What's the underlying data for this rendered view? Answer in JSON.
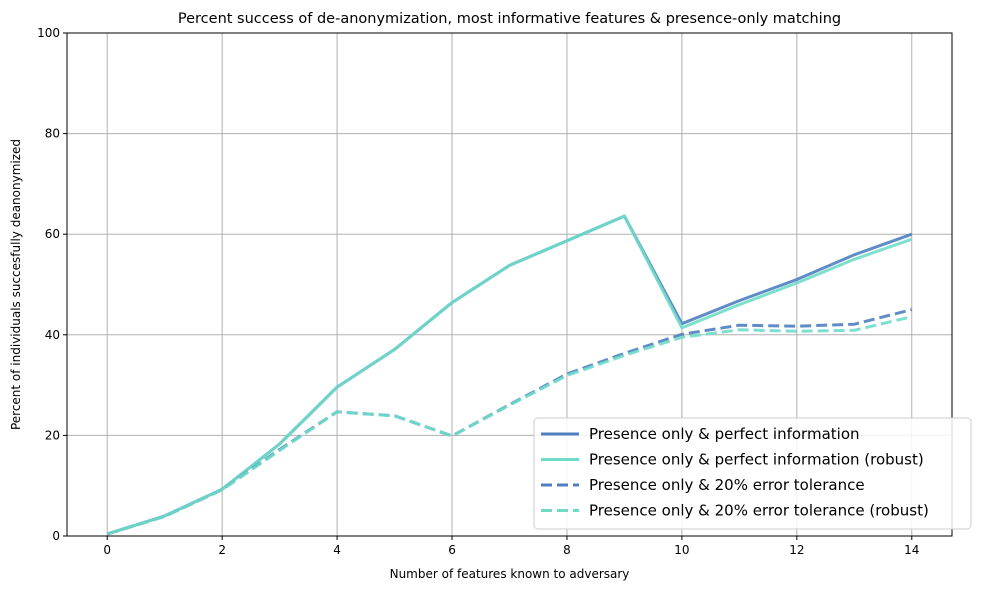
{
  "chart_data": {
    "type": "line",
    "title": "Percent success of de-anonymization, most informative features & presence-only matching",
    "xlabel": "Number of features known to adversary",
    "ylabel": "Percent of individuals succesfully deanonymized",
    "xlim": [
      -0.7,
      14.7
    ],
    "ylim": [
      0,
      100
    ],
    "xticks": [
      0,
      2,
      4,
      6,
      8,
      10,
      12,
      14
    ],
    "yticks": [
      0,
      20,
      40,
      60,
      80,
      100
    ],
    "grid": true,
    "legend_position": "bottom-right",
    "x": [
      0,
      1,
      2,
      3,
      4,
      5,
      6,
      7,
      8,
      9,
      10,
      11,
      12,
      13,
      14
    ],
    "series": [
      {
        "name": "Presence only & perfect information",
        "color": "#4f7fc0",
        "dash": "solid",
        "values": [
          0.4,
          4.0,
          9.3,
          18.3,
          29.6,
          37.1,
          46.4,
          53.8,
          58.7,
          63.6,
          42.2,
          46.8,
          51.0,
          55.9,
          60.0
        ]
      },
      {
        "name": "Presence only & perfect information (robust)",
        "color": "#6fdcc8",
        "dash": "solid",
        "values": [
          0.4,
          4.0,
          9.3,
          18.3,
          29.6,
          37.1,
          46.4,
          53.8,
          58.7,
          63.6,
          41.4,
          46.0,
          50.3,
          55.0,
          59.0
        ]
      },
      {
        "name": "Presence only & 20% error tolerance",
        "color": "#4f7fc0",
        "dash": "dashed",
        "values": [
          0.4,
          3.9,
          9.2,
          17.2,
          24.7,
          23.9,
          19.9,
          26.1,
          32.2,
          36.3,
          40.1,
          41.9,
          41.7,
          42.1,
          45.0
        ]
      },
      {
        "name": "Presence only & 20% error tolerance (robust)",
        "color": "#6fdcc8",
        "dash": "dashed",
        "values": [
          0.4,
          3.9,
          9.2,
          17.0,
          24.7,
          23.9,
          19.9,
          26.0,
          31.9,
          35.9,
          39.5,
          41.0,
          40.7,
          40.9,
          43.6
        ]
      }
    ]
  }
}
